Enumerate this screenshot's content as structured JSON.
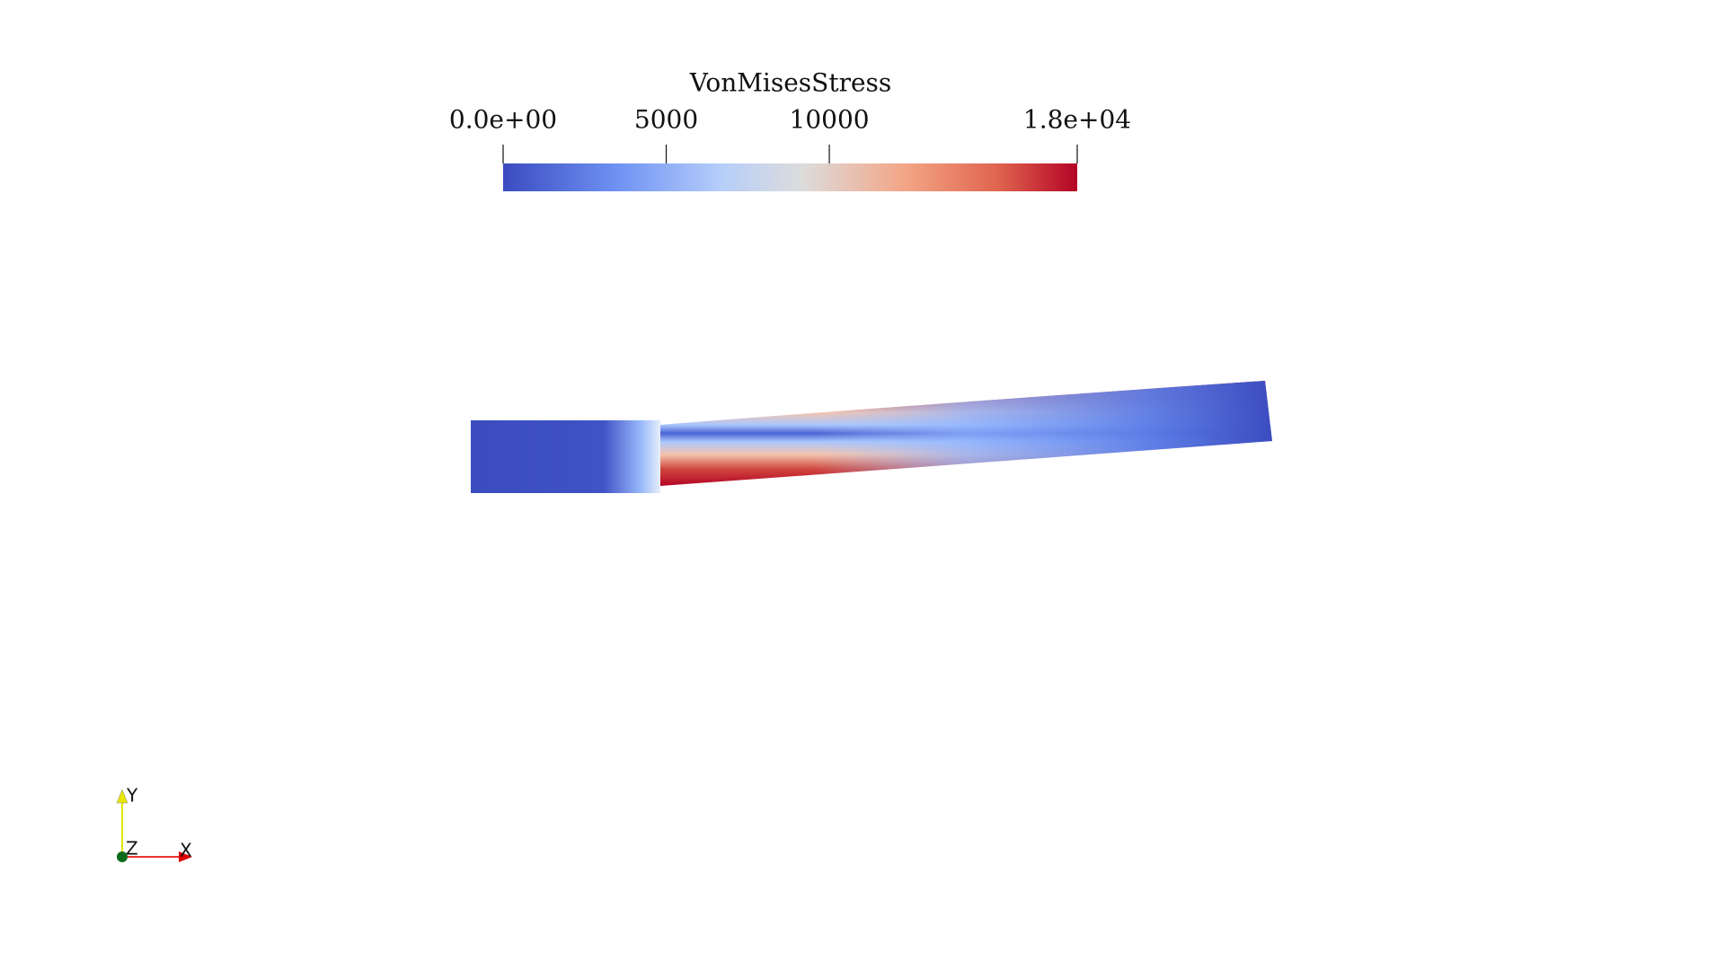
{
  "chart_data": {
    "type": "colorbar",
    "title": "VonMisesStress",
    "xlim": [
      0,
      17600
    ],
    "xticks": [
      {
        "value": 0,
        "label": "0.0e+00"
      },
      5000,
      10000,
      {
        "value": 17600,
        "label": "1.8e+04"
      }
    ]
  },
  "axes_triad": {
    "y": "Y",
    "z": "Z",
    "x": "X"
  }
}
